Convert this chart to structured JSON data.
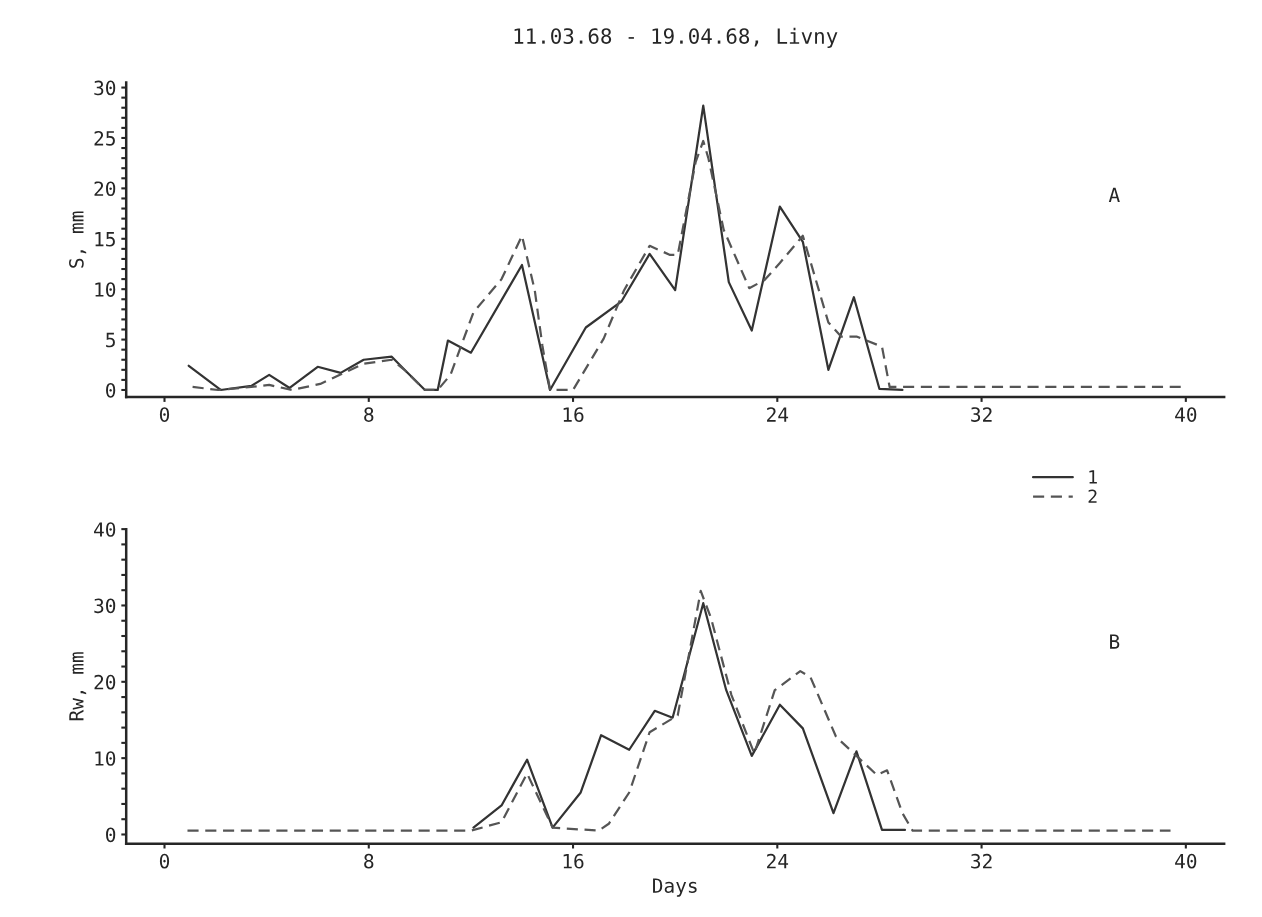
{
  "chart_data": [
    {
      "type": "line",
      "title": "11.03.68 - 19.04.68, Livny",
      "ylabel": "S, mm",
      "annotations": [
        "A"
      ],
      "xlim": [
        -1.5,
        41.5
      ],
      "ylim": [
        -0.7,
        30.5
      ],
      "xticks": [
        0,
        8,
        16,
        24,
        32,
        40
      ],
      "yticks": [
        0,
        {
          "value": 1,
          "label": null
        },
        {
          "value": 2,
          "label": null
        },
        {
          "value": 3,
          "label": null
        },
        {
          "value": 4,
          "label": null
        },
        5,
        {
          "value": 6,
          "label": null
        },
        {
          "value": 7,
          "label": null
        },
        {
          "value": 8,
          "label": null
        },
        {
          "value": 9,
          "label": null
        },
        10,
        {
          "value": 11,
          "label": null
        },
        {
          "value": 12,
          "label": null
        },
        {
          "value": 13,
          "label": null
        },
        {
          "value": 14,
          "label": null
        },
        15,
        {
          "value": 16,
          "label": null
        },
        {
          "value": 17,
          "label": null
        },
        {
          "value": 18,
          "label": null
        },
        {
          "value": 19,
          "label": null
        },
        20,
        {
          "value": 21,
          "label": null
        },
        {
          "value": 22,
          "label": null
        },
        {
          "value": 23,
          "label": null
        },
        {
          "value": 24,
          "label": null
        },
        25,
        {
          "value": 26,
          "label": null
        },
        {
          "value": 27,
          "label": null
        },
        {
          "value": 28,
          "label": null
        },
        {
          "value": 29,
          "label": null
        },
        30
      ],
      "grid": false,
      "legend": false,
      "series": [
        {
          "color": "#333333",
          "line_style": "solid",
          "x": [
            0.95,
            2.2,
            3.4,
            4.1,
            4.9,
            6.0,
            6.9,
            7.8,
            8.9,
            9.4,
            null,
            10.2,
            10.7,
            11.1,
            12.0,
            14.0,
            15.1,
            16.5,
            17.9,
            19.0,
            20.0,
            21.1,
            22.1,
            23.0,
            24.1,
            25.0,
            26.0,
            27.0,
            28.0,
            28.9
          ],
          "values": [
            2.4,
            0,
            0.4,
            1.5,
            0.2,
            2.3,
            1.7,
            3.0,
            3.3,
            2.0,
            null,
            0,
            0,
            4.9,
            3.7,
            12.4,
            0,
            6.2,
            8.8,
            13.5,
            9.9,
            28.2,
            10.7,
            5.9,
            18.2,
            14.7,
            2.0,
            9.2,
            0.1,
            0
          ]
        },
        {
          "color": "#555555",
          "line_style": "dashed",
          "x": [
            1.1,
            2.1,
            3.4,
            4.1,
            5.0,
            6.1,
            7.8,
            8.9,
            9.4,
            null,
            10.2,
            10.7,
            11.2,
            12.1,
            13.2,
            14.0,
            14.5,
            14.8,
            15.1,
            16.0,
            17.2,
            18.0,
            19.0,
            19.8,
            20.1,
            20.8,
            21.1,
            21.3,
            21.9,
            22.9,
            23.5,
            24.1,
            25.0,
            26.0,
            26.5,
            27.1,
            28.1,
            28.4,
            39.8
          ],
          "values": [
            0.3,
            0,
            0.3,
            0.5,
            0,
            0.6,
            2.6,
            3.0,
            2.0,
            null,
            0,
            0,
            1.5,
            7.7,
            11,
            15.3,
            9.9,
            4.4,
            0,
            0,
            5.1,
            9.9,
            14.3,
            13.4,
            13.4,
            22.6,
            24.7,
            23,
            15.9,
            10.1,
            10.9,
            12.6,
            15.3,
            6.7,
            5.3,
            5.3,
            4.3,
            0.3,
            0.3
          ]
        }
      ]
    },
    {
      "type": "line",
      "xlabel": "Days",
      "ylabel": "Rw, mm",
      "annotations": [
        "B"
      ],
      "xlim": [
        -1.5,
        41.5
      ],
      "ylim": [
        -1.2,
        40
      ],
      "xticks": [
        0,
        8,
        16,
        24,
        32,
        40
      ],
      "yticks": [
        0,
        {
          "value": 2,
          "label": null
        },
        {
          "value": 4,
          "label": null
        },
        {
          "value": 6,
          "label": null
        },
        {
          "value": 8,
          "label": null
        },
        10,
        {
          "value": 12,
          "label": null
        },
        {
          "value": 14,
          "label": null
        },
        {
          "value": 16,
          "label": null
        },
        {
          "value": 18,
          "label": null
        },
        20,
        {
          "value": 22,
          "label": null
        },
        {
          "value": 24,
          "label": null
        },
        {
          "value": 26,
          "label": null
        },
        {
          "value": 28,
          "label": null
        },
        30,
        {
          "value": 32,
          "label": null
        },
        {
          "value": 34,
          "label": null
        },
        {
          "value": 36,
          "label": null
        },
        {
          "value": 38,
          "label": null
        },
        40
      ],
      "grid": false,
      "legend": "top right",
      "series": [
        {
          "name": "1",
          "color": "#333333",
          "line_style": "solid",
          "x": [
            12.1,
            13.2,
            14.2,
            15.2,
            16.3,
            17.1,
            18.2,
            19.2,
            19.9,
            21.1,
            22.0,
            23.0,
            24.1,
            25.0,
            26.2,
            27.1,
            28.1,
            29.0
          ],
          "values": [
            0.9,
            3.8,
            9.8,
            0.9,
            5.5,
            13.0,
            11.1,
            16.2,
            15.3,
            30.3,
            18.9,
            10.3,
            17.0,
            13.9,
            2.8,
            10.9,
            0.6,
            0.6
          ]
        },
        {
          "name": "2",
          "color": "#555555",
          "line_style": "dashed",
          "x": [
            0.9,
            12.0,
            13.2,
            14.2,
            15.2,
            17.0,
            17.4,
            18.2,
            18.8,
            19.0,
            20.1,
            21.0,
            21.4,
            22.2,
            23.1,
            23.9,
            24.9,
            25.3,
            26.3,
            27.9,
            28.3,
            28.9,
            29.3,
            39.4
          ],
          "values": [
            0.5,
            0.5,
            1.6,
            8.0,
            0.9,
            0.5,
            1.4,
            5.5,
            11.4,
            13.4,
            15.6,
            31.9,
            28.4,
            18.3,
            10.6,
            18.9,
            21.4,
            20.6,
            12.8,
            7.8,
            8.4,
            2.8,
            0.5,
            0.5
          ]
        }
      ]
    }
  ]
}
